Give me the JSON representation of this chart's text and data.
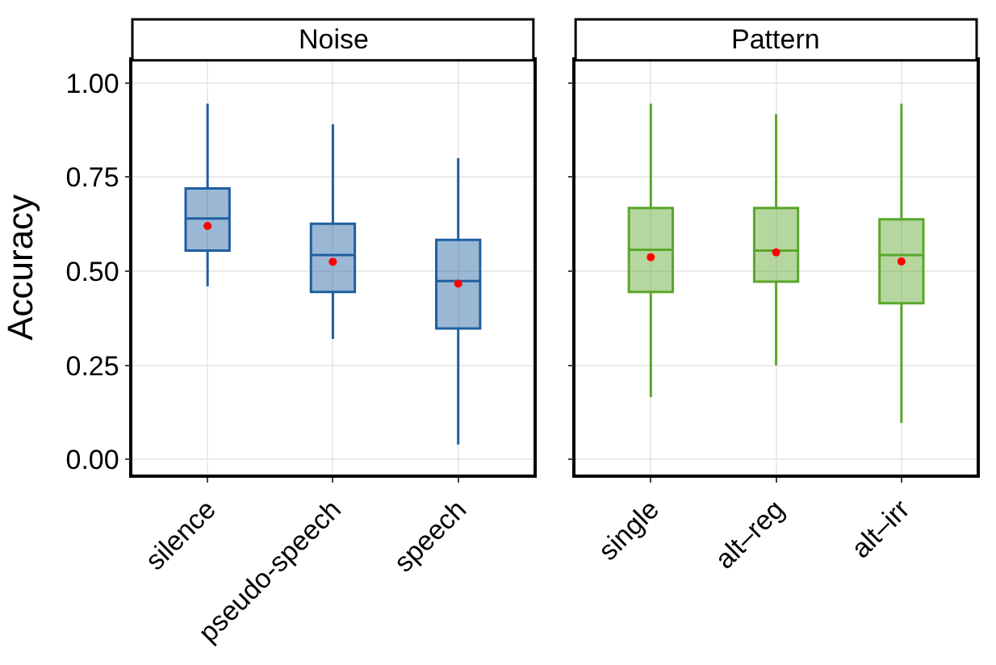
{
  "chart_data": [
    {
      "type": "box",
      "title": "Noise",
      "ylabel": "Accuracy",
      "categories": [
        "silence",
        "pseudo-speech",
        "speech"
      ],
      "series": [
        {
          "color": "#1f5fa0",
          "boxes": [
            {
              "low": 0.46,
              "q1": 0.555,
              "median": 0.64,
              "q3": 0.72,
              "high": 0.945,
              "mean": 0.62
            },
            {
              "low": 0.32,
              "q1": 0.445,
              "median": 0.543,
              "q3": 0.626,
              "high": 0.89,
              "mean": 0.525
            },
            {
              "low": 0.04,
              "q1": 0.348,
              "median": 0.474,
              "q3": 0.583,
              "high": 0.8,
              "mean": 0.467
            }
          ]
        }
      ],
      "ylim": [
        -0.04,
        1.06
      ],
      "yticks": [
        {
          "value": 0,
          "label": "0.00"
        },
        {
          "value": 0.25,
          "label": "0.25"
        },
        {
          "value": 0.5,
          "label": "0.50"
        },
        {
          "value": 0.75,
          "label": "0.75"
        },
        {
          "value": 1,
          "label": "1.00"
        }
      ],
      "grid": true
    },
    {
      "type": "box",
      "title": "Pattern",
      "categories": [
        "single",
        "alt–reg",
        "alt–irr"
      ],
      "series": [
        {
          "color": "#5aa62a",
          "boxes": [
            {
              "low": 0.166,
              "q1": 0.445,
              "median": 0.557,
              "q3": 0.668,
              "high": 0.945,
              "mean": 0.537
            },
            {
              "low": 0.25,
              "q1": 0.472,
              "median": 0.555,
              "q3": 0.668,
              "high": 0.917,
              "mean": 0.55
            },
            {
              "low": 0.097,
              "q1": 0.415,
              "median": 0.543,
              "q3": 0.638,
              "high": 0.945,
              "mean": 0.526
            }
          ]
        }
      ],
      "ylim": [
        -0.04,
        1.06
      ],
      "yticks": [
        0,
        0.25,
        0.5,
        0.75,
        1
      ],
      "grid": true,
      "tick_labels": "x"
    }
  ]
}
